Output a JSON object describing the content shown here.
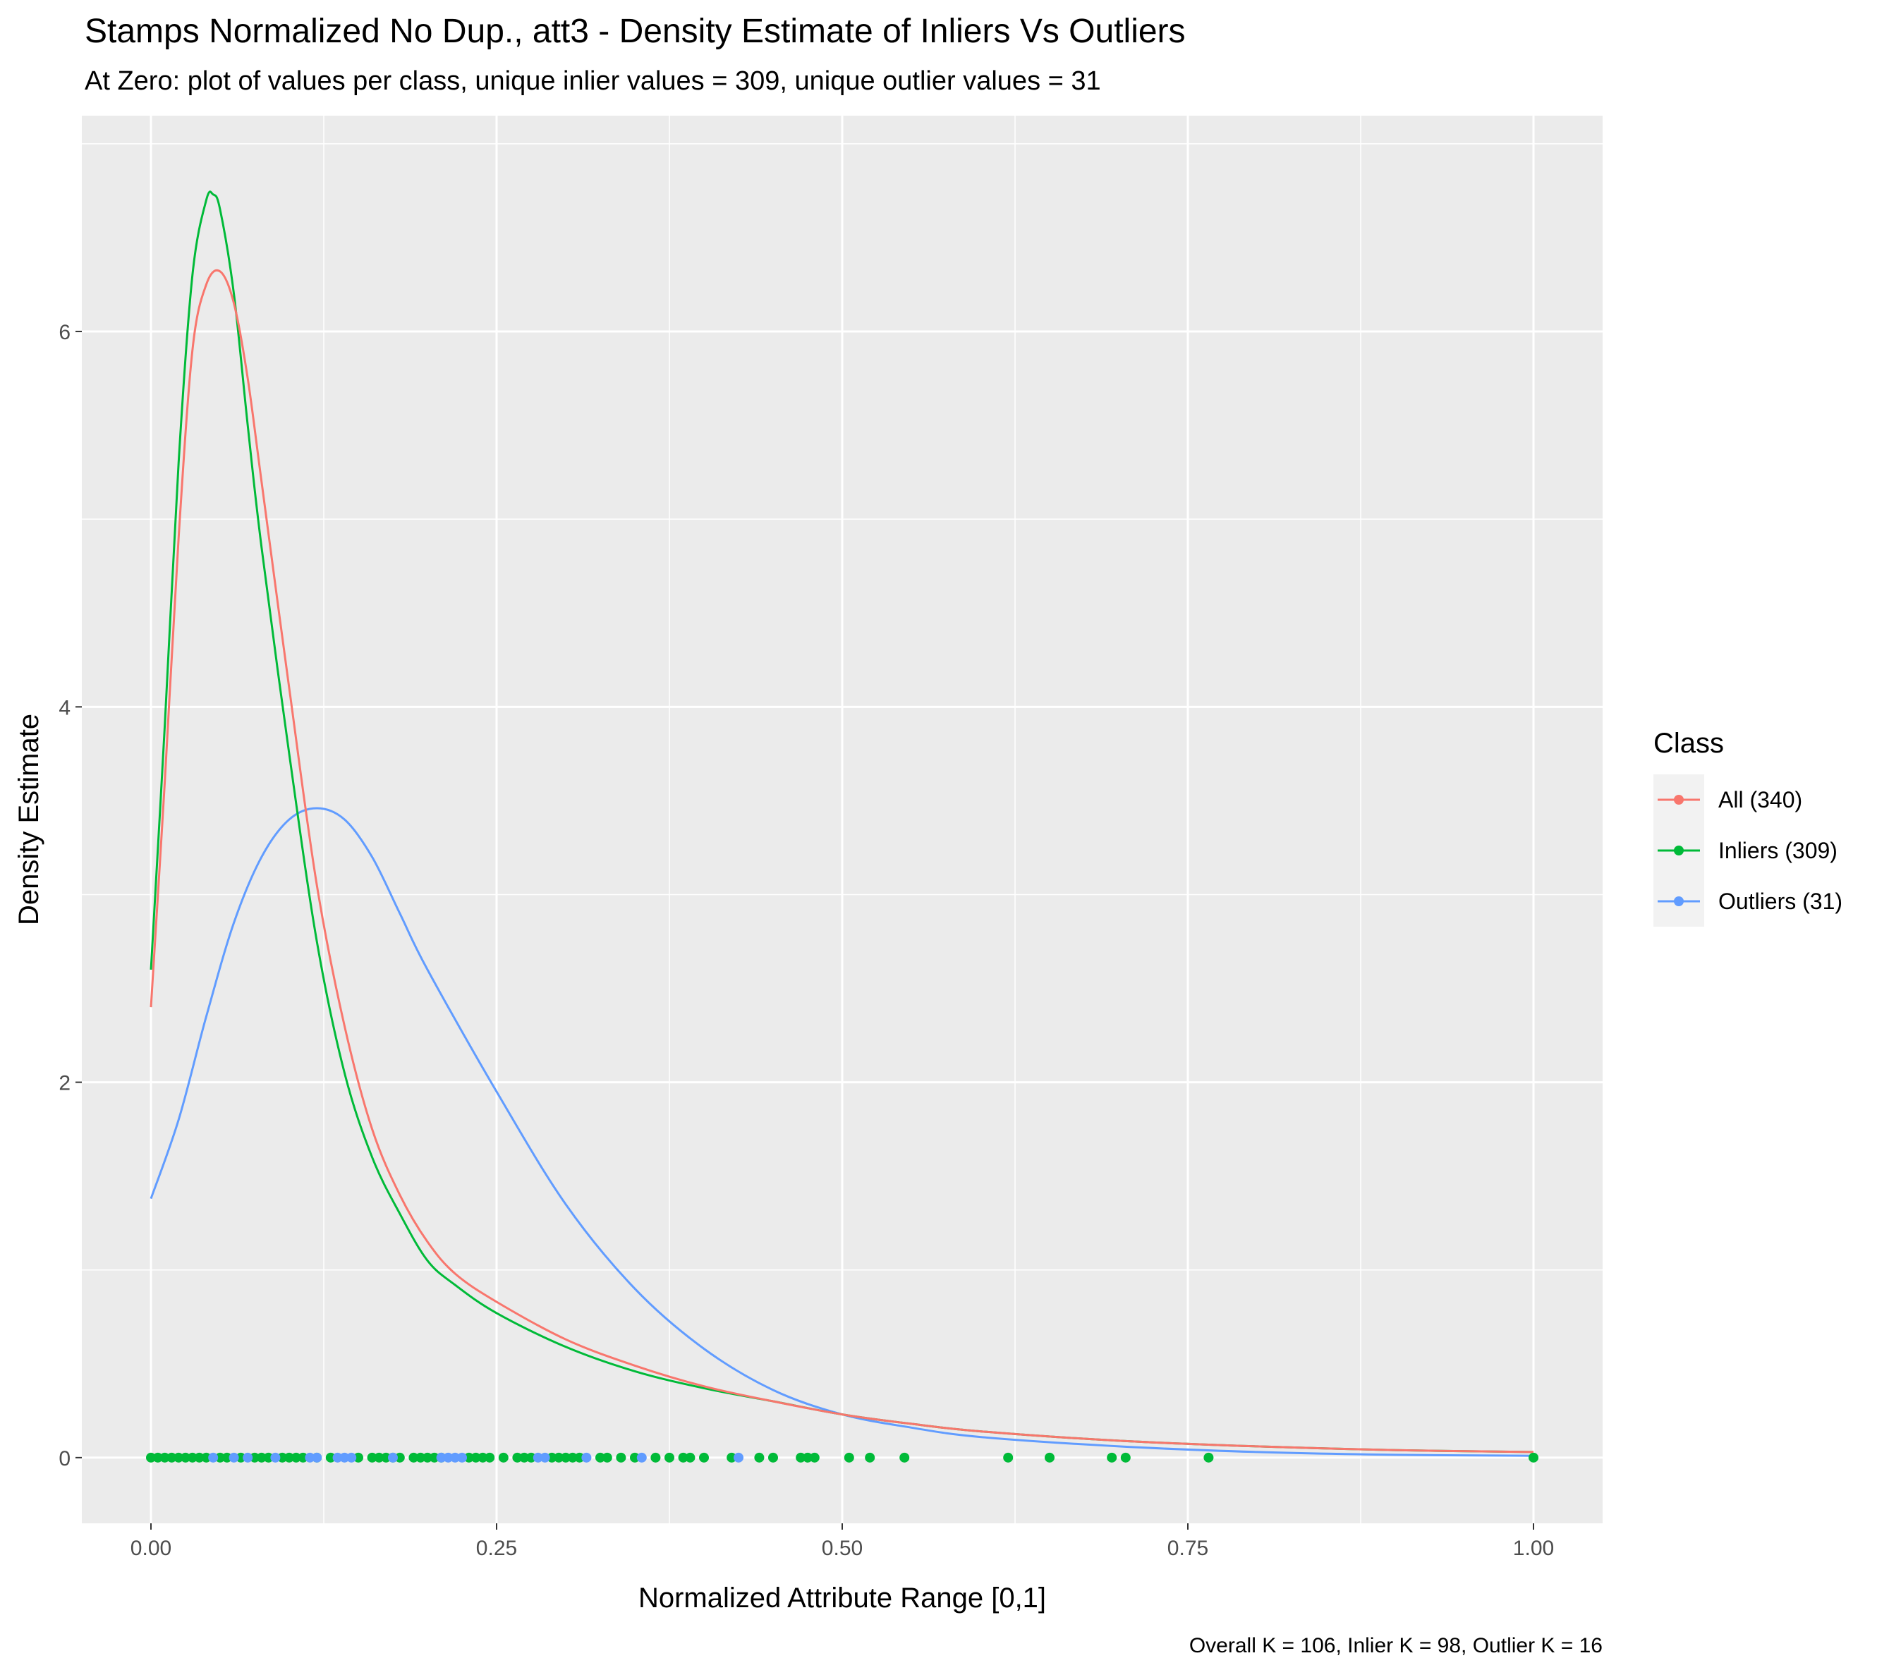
{
  "chart_data": {
    "type": "line",
    "title": "Stamps Normalized No Dup., att3 - Density Estimate of Inliers Vs Outliers",
    "subtitle": "At Zero: plot of values per class, unique inlier values = 309, unique outlier values = 31",
    "xlabel": "Normalized Attribute Range [0,1]",
    "ylabel": "Density Estimate",
    "caption": "Overall K = 106, Inlier K = 98, Outlier K = 16",
    "xlim": [
      -0.05,
      1.05
    ],
    "ylim": [
      -0.35,
      7.15
    ],
    "x_ticks": [
      0,
      0.25,
      0.5,
      0.75,
      1
    ],
    "x_tick_labels": [
      "0.00",
      "0.25",
      "0.50",
      "0.75",
      "1.00"
    ],
    "y_ticks": [
      0,
      2,
      4,
      6
    ],
    "y_tick_labels": [
      "0",
      "2",
      "4",
      "6"
    ],
    "grid": true,
    "legend": {
      "title": "Class",
      "position": "right"
    },
    "series": [
      {
        "name": "All (340)",
        "color": "#F8766D",
        "x": [
          0,
          0.01,
          0.02,
          0.03,
          0.04,
          0.05,
          0.06,
          0.07,
          0.08,
          0.1,
          0.12,
          0.14,
          0.16,
          0.18,
          0.2,
          0.22,
          0.25,
          0.3,
          0.35,
          0.4,
          0.45,
          0.5,
          0.55,
          0.6,
          0.7,
          0.8,
          0.9,
          1.0
        ],
        "values": [
          2.4,
          3.6,
          4.9,
          5.9,
          6.25,
          6.32,
          6.15,
          5.75,
          5.2,
          4.1,
          3.05,
          2.3,
          1.75,
          1.4,
          1.15,
          0.98,
          0.83,
          0.63,
          0.49,
          0.38,
          0.3,
          0.23,
          0.18,
          0.14,
          0.09,
          0.06,
          0.04,
          0.03
        ]
      },
      {
        "name": "Inliers (309)",
        "color": "#00BA38",
        "x": [
          0,
          0.01,
          0.02,
          0.03,
          0.04,
          0.045,
          0.05,
          0.06,
          0.07,
          0.08,
          0.1,
          0.12,
          0.14,
          0.16,
          0.18,
          0.2,
          0.22,
          0.25,
          0.3,
          0.35,
          0.4,
          0.45,
          0.5,
          0.55,
          0.6,
          0.7,
          0.8,
          0.9,
          1.0
        ],
        "values": [
          2.6,
          3.9,
          5.3,
          6.3,
          6.7,
          6.73,
          6.65,
          6.2,
          5.5,
          4.85,
          3.75,
          2.75,
          2.05,
          1.6,
          1.3,
          1.05,
          0.92,
          0.77,
          0.59,
          0.46,
          0.37,
          0.3,
          0.23,
          0.18,
          0.14,
          0.09,
          0.06,
          0.04,
          0.03
        ]
      },
      {
        "name": "Outliers (31)",
        "color": "#619CFF",
        "x": [
          0,
          0.02,
          0.04,
          0.06,
          0.08,
          0.1,
          0.12,
          0.14,
          0.16,
          0.18,
          0.2,
          0.25,
          0.3,
          0.35,
          0.4,
          0.45,
          0.5,
          0.55,
          0.6,
          0.7,
          0.8,
          0.9,
          1.0
        ],
        "values": [
          1.38,
          1.8,
          2.35,
          2.85,
          3.2,
          3.4,
          3.46,
          3.4,
          3.2,
          2.9,
          2.6,
          1.95,
          1.35,
          0.9,
          0.58,
          0.36,
          0.23,
          0.16,
          0.11,
          0.06,
          0.03,
          0.015,
          0.01
        ]
      }
    ],
    "rug": {
      "y": 0,
      "inliers": [
        0,
        0.005,
        0.01,
        0.015,
        0.02,
        0.025,
        0.03,
        0.035,
        0.04,
        0.05,
        0.055,
        0.065,
        0.075,
        0.08,
        0.085,
        0.095,
        0.1,
        0.105,
        0.11,
        0.12,
        0.13,
        0.15,
        0.16,
        0.165,
        0.17,
        0.175,
        0.18,
        0.19,
        0.195,
        0.2,
        0.205,
        0.21,
        0.23,
        0.235,
        0.24,
        0.245,
        0.255,
        0.265,
        0.27,
        0.275,
        0.29,
        0.295,
        0.3,
        0.305,
        0.31,
        0.325,
        0.33,
        0.34,
        0.35,
        0.365,
        0.375,
        0.385,
        0.39,
        0.4,
        0.42,
        0.44,
        0.45,
        0.47,
        0.475,
        0.48,
        0.505,
        0.52,
        0.545,
        0.62,
        0.65,
        0.695,
        0.705,
        0.765,
        1.0
      ],
      "outliers": [
        0.045,
        0.06,
        0.07,
        0.09,
        0.115,
        0.12,
        0.135,
        0.14,
        0.145,
        0.175,
        0.21,
        0.215,
        0.22,
        0.225,
        0.28,
        0.285,
        0.315,
        0.355,
        0.425
      ]
    }
  }
}
